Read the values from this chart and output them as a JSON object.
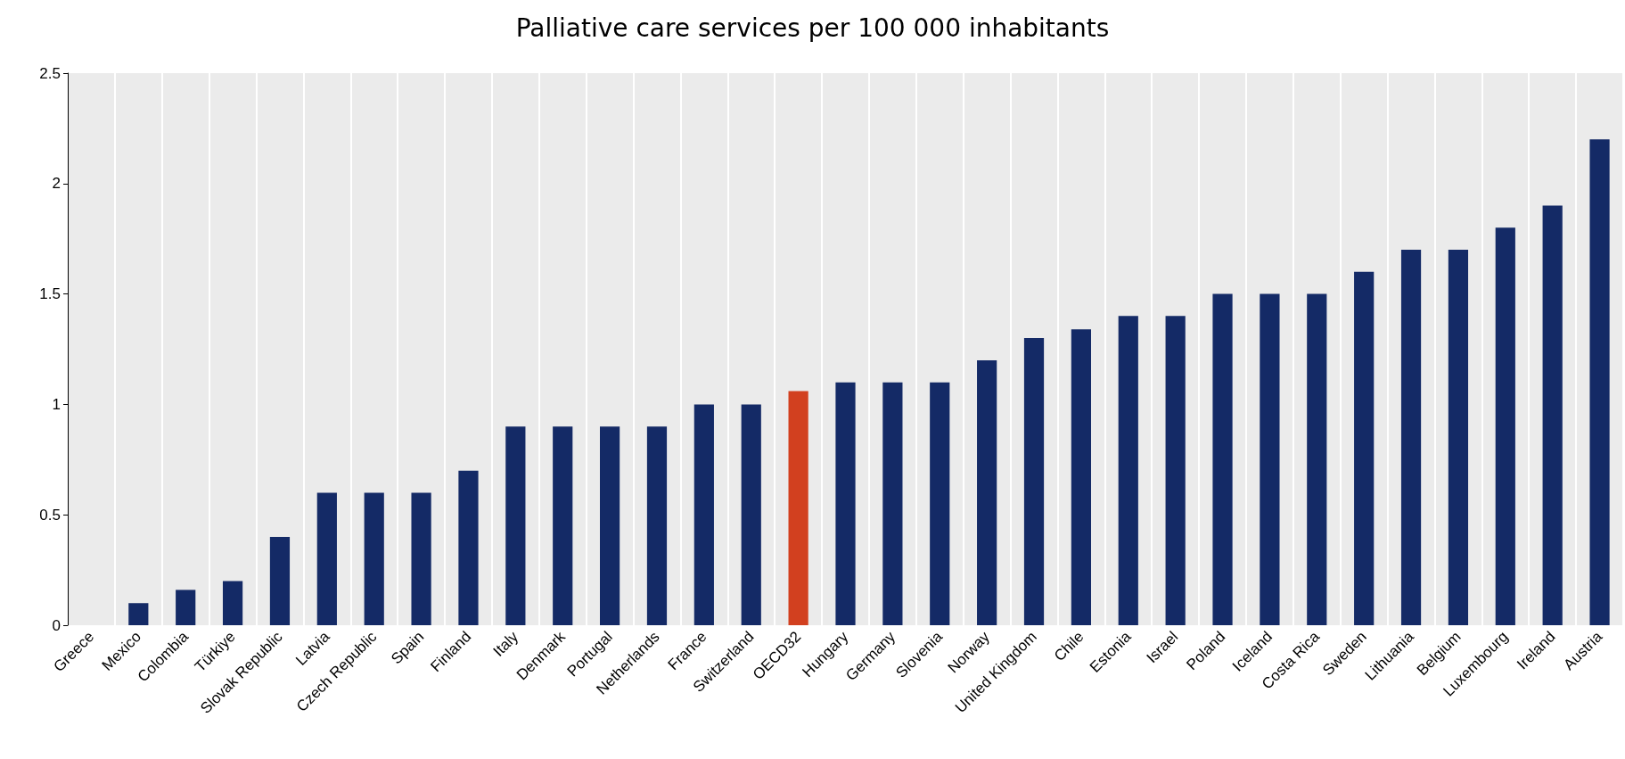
{
  "chart_data": {
    "type": "bar",
    "title": "Palliative care services per 100 000 inhabitants",
    "categories": [
      "Greece",
      "Mexico",
      "Colombia",
      "Türkiye",
      "Slovak Republic",
      "Latvia",
      "Czech Republic",
      "Spain",
      "Finland",
      "Italy",
      "Denmark",
      "Portugal",
      "Netherlands",
      "France",
      "Switzerland",
      "OECD32",
      "Hungary",
      "Germany",
      "Slovenia",
      "Norway",
      "United Kingdom",
      "Chile",
      "Estonia",
      "Israel",
      "Poland",
      "Iceland",
      "Costa Rica",
      "Sweden",
      "Lithuania",
      "Belgium",
      "Luxembourg",
      "Ireland",
      "Austria"
    ],
    "values": [
      0,
      0.1,
      0.16,
      0.2,
      0.4,
      0.6,
      0.6,
      0.6,
      0.7,
      0.9,
      0.9,
      0.9,
      0.9,
      1.0,
      1.0,
      1.06,
      1.1,
      1.1,
      1.1,
      1.2,
      1.3,
      1.34,
      1.4,
      1.4,
      1.5,
      1.5,
      1.5,
      1.6,
      1.7,
      1.7,
      1.8,
      1.9,
      2.2
    ],
    "colors": [
      "#142a66",
      "#142a66",
      "#142a66",
      "#142a66",
      "#142a66",
      "#142a66",
      "#142a66",
      "#142a66",
      "#142a66",
      "#142a66",
      "#142a66",
      "#142a66",
      "#142a66",
      "#142a66",
      "#142a66",
      "#d2401f",
      "#142a66",
      "#142a66",
      "#142a66",
      "#142a66",
      "#142a66",
      "#142a66",
      "#142a66",
      "#142a66",
      "#142a66",
      "#142a66",
      "#142a66",
      "#142a66",
      "#142a66",
      "#142a66",
      "#142a66",
      "#142a66",
      "#142a66"
    ],
    "ylim": [
      0,
      2.5
    ],
    "yticks": [
      0,
      0.5,
      1,
      1.5,
      2,
      2.5
    ],
    "grid": "x"
  }
}
